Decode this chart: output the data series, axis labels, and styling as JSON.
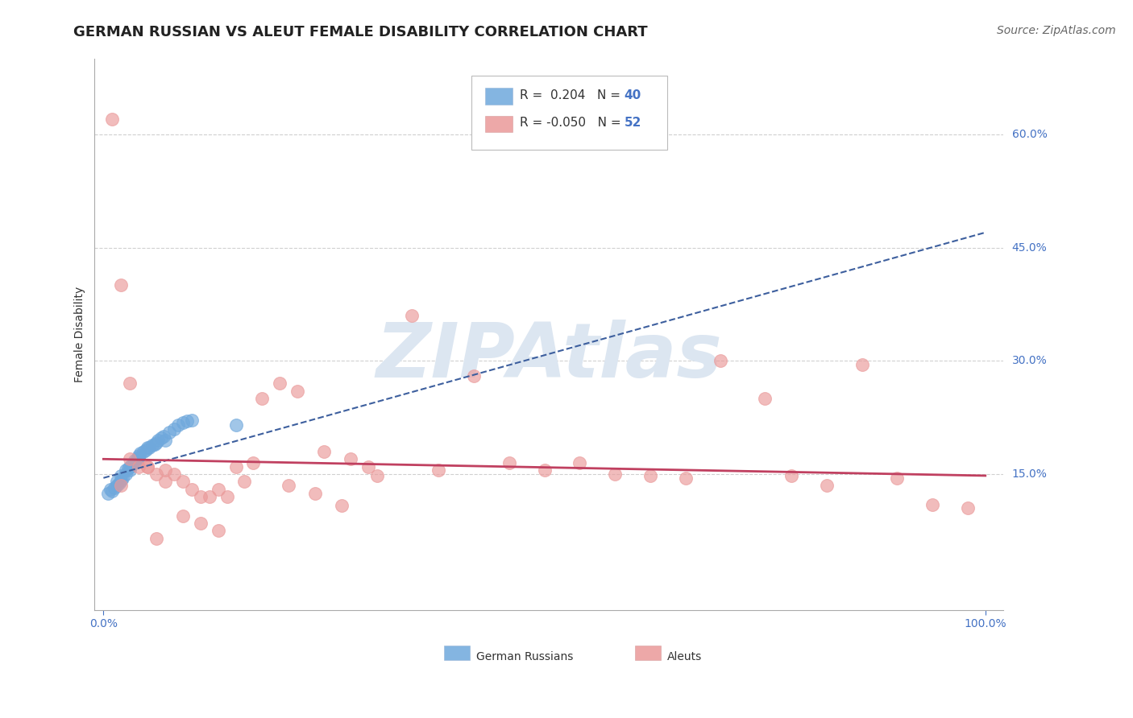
{
  "title": "GERMAN RUSSIAN VS ALEUT FEMALE DISABILITY CORRELATION CHART",
  "source": "Source: ZipAtlas.com",
  "ylabel": "Female Disability",
  "xlim": [
    -0.01,
    1.02
  ],
  "ylim": [
    -0.03,
    0.7
  ],
  "ytick_vals": [
    0.15,
    0.3,
    0.45,
    0.6
  ],
  "ytick_labels": [
    "15.0%",
    "30.0%",
    "45.0%",
    "60.0%"
  ],
  "legend_r_blue": "R =  0.204",
  "legend_n_blue": "40",
  "legend_r_pink": "R = -0.050",
  "legend_n_pink": "52",
  "blue_color": "#6fa8dc",
  "blue_edge_color": "#6fa8dc",
  "pink_color": "#ea9999",
  "pink_edge_color": "#ea9999",
  "blue_line_color": "#3d5f9e",
  "pink_line_color": "#c04060",
  "watermark": "ZIPAtlas",
  "watermark_color": "#dce6f1",
  "blue_trend": [
    0.0,
    1.0,
    0.145,
    0.47
  ],
  "pink_trend": [
    0.0,
    1.0,
    0.17,
    0.148
  ],
  "blue_scatter_x": [
    0.005,
    0.008,
    0.01,
    0.012,
    0.015,
    0.015,
    0.018,
    0.02,
    0.02,
    0.022,
    0.025,
    0.025,
    0.028,
    0.03,
    0.03,
    0.032,
    0.035,
    0.035,
    0.038,
    0.04,
    0.04,
    0.042,
    0.045,
    0.048,
    0.05,
    0.052,
    0.055,
    0.058,
    0.06,
    0.062,
    0.065,
    0.068,
    0.07,
    0.075,
    0.08,
    0.085,
    0.09,
    0.095,
    0.1,
    0.15
  ],
  "blue_scatter_y": [
    0.125,
    0.13,
    0.128,
    0.132,
    0.135,
    0.14,
    0.138,
    0.142,
    0.148,
    0.145,
    0.15,
    0.155,
    0.158,
    0.155,
    0.16,
    0.162,
    0.165,
    0.168,
    0.17,
    0.172,
    0.175,
    0.178,
    0.18,
    0.182,
    0.185,
    0.185,
    0.188,
    0.19,
    0.192,
    0.195,
    0.198,
    0.2,
    0.195,
    0.205,
    0.21,
    0.215,
    0.218,
    0.22,
    0.222,
    0.215
  ],
  "pink_scatter_x": [
    0.01,
    0.02,
    0.03,
    0.04,
    0.05,
    0.06,
    0.07,
    0.08,
    0.09,
    0.1,
    0.11,
    0.12,
    0.13,
    0.14,
    0.15,
    0.16,
    0.18,
    0.2,
    0.22,
    0.25,
    0.28,
    0.3,
    0.35,
    0.38,
    0.42,
    0.46,
    0.5,
    0.54,
    0.58,
    0.62,
    0.66,
    0.7,
    0.75,
    0.78,
    0.82,
    0.86,
    0.9,
    0.94,
    0.98,
    0.03,
    0.05,
    0.07,
    0.09,
    0.11,
    0.13,
    0.17,
    0.21,
    0.24,
    0.27,
    0.31,
    0.02,
    0.06
  ],
  "pink_scatter_y": [
    0.62,
    0.4,
    0.27,
    0.16,
    0.16,
    0.15,
    0.14,
    0.15,
    0.14,
    0.13,
    0.12,
    0.12,
    0.13,
    0.12,
    0.16,
    0.14,
    0.25,
    0.27,
    0.26,
    0.18,
    0.17,
    0.16,
    0.36,
    0.155,
    0.28,
    0.165,
    0.155,
    0.165,
    0.15,
    0.148,
    0.145,
    0.3,
    0.25,
    0.148,
    0.135,
    0.295,
    0.145,
    0.11,
    0.105,
    0.17,
    0.16,
    0.155,
    0.095,
    0.085,
    0.075,
    0.165,
    0.135,
    0.125,
    0.108,
    0.148,
    0.135,
    0.065
  ],
  "grid_color": "#d0d0d0",
  "background_color": "#ffffff",
  "title_color": "#222222",
  "source_color": "#666666",
  "axis_color": "#aaaaaa",
  "tick_color": "#4472c4",
  "title_fontsize": 13,
  "label_fontsize": 10,
  "tick_fontsize": 10,
  "source_fontsize": 10
}
